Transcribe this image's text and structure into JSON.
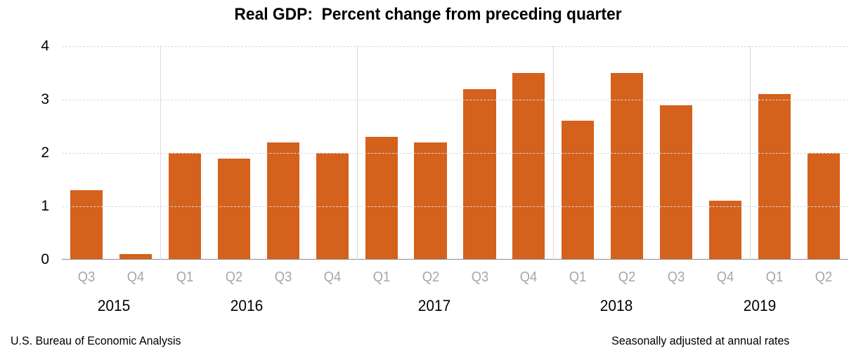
{
  "footer": {
    "left": "U.S. Bureau of Economic Analysis",
    "right": "Seasonally adjusted at annual rates"
  },
  "colors": {
    "bar": "#D4611C",
    "grid": "#D9D9D9",
    "axis_line": "#8C8C8C",
    "quarter_label": "#A6A6A6",
    "text": "#000000"
  },
  "chart_data": {
    "type": "bar",
    "title": "Real GDP:  Percent change from preceding quarter",
    "xlabel": "",
    "ylabel": "",
    "ylim": [
      0,
      4
    ],
    "yticks": [
      4,
      3,
      2,
      1,
      0
    ],
    "grid": "horizontal dashed gridlines at 1-4; solid vertical separators between year groups; legend none",
    "categories": [
      "Q3",
      "Q4",
      "Q1",
      "Q2",
      "Q3",
      "Q4",
      "Q1",
      "Q2",
      "Q3",
      "Q4",
      "Q1",
      "Q2",
      "Q3",
      "Q4",
      "Q1",
      "Q2"
    ],
    "values": [
      1.3,
      0.1,
      2.0,
      1.9,
      2.2,
      2.0,
      2.3,
      2.2,
      3.2,
      3.5,
      2.6,
      3.5,
      2.9,
      1.1,
      3.1,
      2.0
    ],
    "year_groups": [
      {
        "year": "2015",
        "count": 2
      },
      {
        "year": "2016",
        "count": 4
      },
      {
        "year": "2017",
        "count": 4
      },
      {
        "year": "2018",
        "count": 4
      },
      {
        "year": "2019",
        "count": 2
      }
    ]
  }
}
